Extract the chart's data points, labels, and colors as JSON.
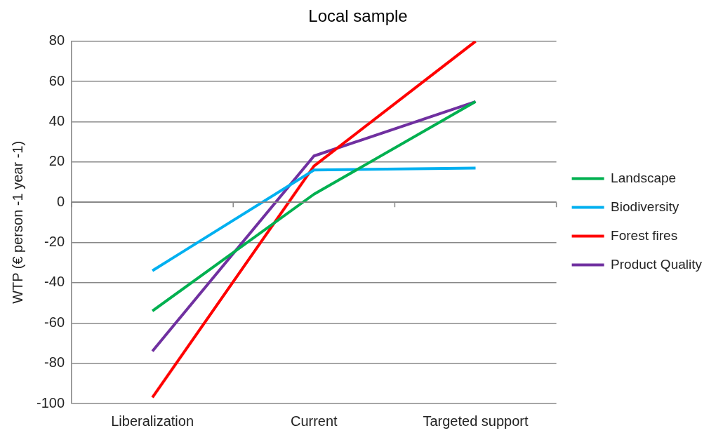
{
  "chart_data": {
    "type": "line",
    "title": "Local sample",
    "ylabel": "WTP (€ person -1 year -1)",
    "categories": [
      "Liberalization",
      "Current",
      "Targeted support"
    ],
    "series": [
      {
        "name": "Landscape",
        "color": "#00b050",
        "values": [
          -54,
          4,
          50
        ]
      },
      {
        "name": "Biodiversity",
        "color": "#00b0f0",
        "values": [
          -34,
          16,
          17
        ]
      },
      {
        "name": "Forest fires",
        "color": "#ff0000",
        "values": [
          -97,
          18,
          80
        ]
      },
      {
        "name": "Product Quality",
        "color": "#7030a0",
        "values": [
          -74,
          23,
          50
        ]
      }
    ],
    "ylim": [
      -100,
      80
    ],
    "yticks": [
      -100,
      -80,
      -60,
      -40,
      -20,
      0,
      20,
      40,
      60,
      80
    ],
    "grid": "y",
    "legend": "right",
    "marker": "none",
    "line_style": "solid"
  }
}
